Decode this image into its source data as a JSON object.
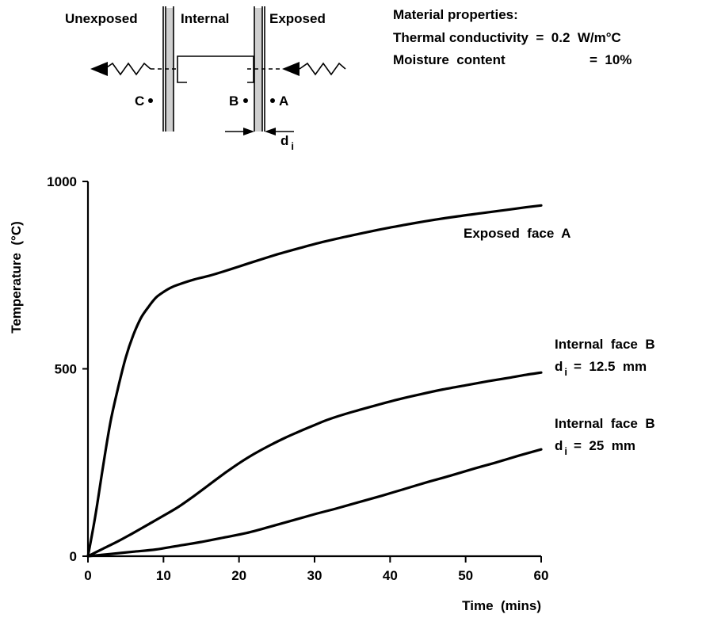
{
  "diagram": {
    "zone_labels": [
      "Unexposed",
      "Internal",
      "Exposed"
    ],
    "point_labels": [
      "C",
      "B",
      "A"
    ],
    "thickness_label": "d",
    "thickness_subscript": "i"
  },
  "material": {
    "heading": "Material properties:",
    "conductivity": "Thermal conductivity  =  0.2  W/m°C",
    "moisture_label": "Moisture  content",
    "moisture_value": "=  10%"
  },
  "chart_data": {
    "type": "line",
    "xlabel": "Time  (mins)",
    "ylabel": "Temperature  (°C)",
    "xlim": [
      0,
      60
    ],
    "ylim": [
      0,
      1000
    ],
    "x_ticks": [
      0,
      10,
      20,
      30,
      40,
      50,
      60
    ],
    "y_ticks": [
      0,
      500,
      1000
    ],
    "grid": false,
    "series": [
      {
        "name": "Exposed face A",
        "label_lines": [
          "Exposed  face  A"
        ],
        "points": [
          [
            0,
            0
          ],
          [
            1,
            110
          ],
          [
            2,
            240
          ],
          [
            3,
            360
          ],
          [
            4,
            450
          ],
          [
            5,
            530
          ],
          [
            6,
            590
          ],
          [
            7,
            635
          ],
          [
            8,
            665
          ],
          [
            9,
            690
          ],
          [
            10,
            705
          ],
          [
            11,
            717
          ],
          [
            12,
            725
          ],
          [
            14,
            738
          ],
          [
            16,
            748
          ],
          [
            18,
            760
          ],
          [
            20,
            773
          ],
          [
            22,
            786
          ],
          [
            25,
            805
          ],
          [
            28,
            822
          ],
          [
            31,
            838
          ],
          [
            34,
            852
          ],
          [
            37,
            865
          ],
          [
            40,
            877
          ],
          [
            43,
            888
          ],
          [
            46,
            898
          ],
          [
            49,
            907
          ],
          [
            52,
            915
          ],
          [
            55,
            923
          ],
          [
            58,
            931
          ],
          [
            60,
            936
          ]
        ]
      },
      {
        "name": "Internal face B d_i = 12.5 mm",
        "label_lines": [
          "Internal  face  B",
          "=  12.5  mm"
        ],
        "points": [
          [
            0,
            0
          ],
          [
            2,
            20
          ],
          [
            4,
            40
          ],
          [
            6,
            62
          ],
          [
            8,
            85
          ],
          [
            10,
            108
          ],
          [
            12,
            132
          ],
          [
            14,
            160
          ],
          [
            16,
            190
          ],
          [
            18,
            220
          ],
          [
            20,
            248
          ],
          [
            22,
            273
          ],
          [
            24,
            295
          ],
          [
            26,
            315
          ],
          [
            28,
            333
          ],
          [
            30,
            350
          ],
          [
            32,
            366
          ],
          [
            35,
            385
          ],
          [
            38,
            402
          ],
          [
            41,
            418
          ],
          [
            44,
            432
          ],
          [
            47,
            445
          ],
          [
            50,
            456
          ],
          [
            53,
            467
          ],
          [
            56,
            477
          ],
          [
            58,
            484
          ],
          [
            60,
            490
          ]
        ]
      },
      {
        "name": "Internal face B d_i = 25 mm",
        "label_lines": [
          "Internal  face  B",
          "=  25  mm"
        ],
        "points": [
          [
            0,
            0
          ],
          [
            3,
            6
          ],
          [
            6,
            12
          ],
          [
            9,
            18
          ],
          [
            12,
            28
          ],
          [
            15,
            38
          ],
          [
            18,
            50
          ],
          [
            21,
            62
          ],
          [
            24,
            78
          ],
          [
            27,
            95
          ],
          [
            30,
            112
          ],
          [
            33,
            128
          ],
          [
            36,
            145
          ],
          [
            39,
            162
          ],
          [
            42,
            180
          ],
          [
            45,
            198
          ],
          [
            48,
            215
          ],
          [
            51,
            233
          ],
          [
            54,
            250
          ],
          [
            57,
            268
          ],
          [
            60,
            285
          ]
        ]
      }
    ]
  }
}
